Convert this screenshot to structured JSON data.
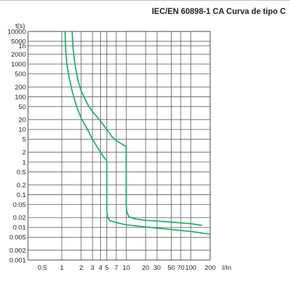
{
  "chart_data": {
    "type": "line",
    "title": "IEC/EN 60898-1 CA Curva de tipo C",
    "xlabel": "I/In",
    "ylabel": "t(s)",
    "x_scale": "log",
    "y_scale": "log",
    "xlim": [
      0.3,
      200
    ],
    "ylim": [
      0.001,
      10000
    ],
    "grid": true,
    "x_gridlines": [
      1,
      2,
      3,
      4,
      5,
      7,
      10,
      20,
      30,
      50,
      70,
      100,
      200
    ],
    "x_ticks": [
      {
        "value": 0.5,
        "label": "0.5"
      },
      {
        "value": 1,
        "label": "1"
      },
      {
        "value": 2,
        "label": "2"
      },
      {
        "value": 3,
        "label": "3"
      },
      {
        "value": 4,
        "label": "4"
      },
      {
        "value": 5,
        "label": "5"
      },
      {
        "value": 7,
        "label": "7"
      },
      {
        "value": 10,
        "label": "10"
      },
      {
        "value": 20,
        "label": "20"
      },
      {
        "value": 30,
        "label": "30"
      },
      {
        "value": 50,
        "label": "50"
      },
      {
        "value": 70,
        "label": "70"
      },
      {
        "value": 100,
        "label": "100"
      },
      {
        "value": 200,
        "label": "200"
      }
    ],
    "y_ticks": [
      {
        "value": 10000,
        "label": "10000"
      },
      {
        "value": 5000,
        "label": "5000"
      },
      {
        "value": 3600,
        "label": "1h"
      },
      {
        "value": 2000,
        "label": "2000"
      },
      {
        "value": 1000,
        "label": "1000"
      },
      {
        "value": 500,
        "label": "500"
      },
      {
        "value": 200,
        "label": "200"
      },
      {
        "value": 100,
        "label": "100"
      },
      {
        "value": 50,
        "label": "50"
      },
      {
        "value": 20,
        "label": "20"
      },
      {
        "value": 10,
        "label": "10"
      },
      {
        "value": 5,
        "label": "5"
      },
      {
        "value": 2,
        "label": "2"
      },
      {
        "value": 1,
        "label": "1"
      },
      {
        "value": 0.5,
        "label": "0.5"
      },
      {
        "value": 0.2,
        "label": "0.2"
      },
      {
        "value": 0.1,
        "label": "0.1"
      },
      {
        "value": 0.05,
        "label": "0.05"
      },
      {
        "value": 0.02,
        "label": "0.02"
      },
      {
        "value": 0.01,
        "label": "0.01"
      },
      {
        "value": 0.005,
        "label": "0.005"
      },
      {
        "value": 0.002,
        "label": "0.002"
      },
      {
        "value": 0.001,
        "label": "0.001"
      }
    ],
    "line_color": "#1eb06a",
    "series": [
      {
        "points": [
          [
            1.13,
            10000
          ],
          [
            1.15,
            3000
          ],
          [
            1.2,
            1000
          ],
          [
            1.3,
            400
          ],
          [
            1.45,
            150
          ],
          [
            1.7,
            50
          ],
          [
            2,
            22
          ],
          [
            2.5,
            10
          ],
          [
            3,
            5
          ],
          [
            3.5,
            3
          ],
          [
            4,
            2
          ],
          [
            4.5,
            1.4
          ],
          [
            5,
            1.1
          ],
          [
            5,
            0.5
          ],
          [
            5,
            0.1
          ],
          [
            5,
            0.03
          ],
          [
            5.15,
            0.02
          ],
          [
            5.6,
            0.016
          ],
          [
            7,
            0.014
          ],
          [
            10,
            0.012
          ],
          [
            30,
            0.0095
          ],
          [
            100,
            0.0075
          ],
          [
            200,
            0.0062
          ]
        ]
      },
      {
        "points": [
          [
            1.45,
            10000
          ],
          [
            1.5,
            3000
          ],
          [
            1.6,
            1000
          ],
          [
            1.8,
            300
          ],
          [
            2,
            150
          ],
          [
            2.5,
            60
          ],
          [
            3,
            35
          ],
          [
            4,
            18
          ],
          [
            5,
            10
          ],
          [
            6,
            6
          ],
          [
            7,
            4.5
          ],
          [
            8.5,
            3.6
          ],
          [
            10,
            3
          ],
          [
            10,
            1
          ],
          [
            10,
            0.2
          ],
          [
            10,
            0.05
          ],
          [
            10.2,
            0.03
          ],
          [
            11,
            0.021
          ],
          [
            14,
            0.018
          ],
          [
            20,
            0.0165
          ],
          [
            50,
            0.0145
          ],
          [
            100,
            0.013
          ],
          [
            150,
            0.0115
          ]
        ]
      }
    ]
  }
}
